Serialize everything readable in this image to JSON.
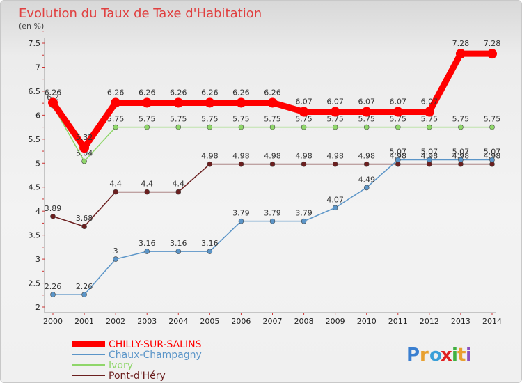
{
  "chart_data": {
    "type": "line",
    "title": "Evolution du Taux de Taxe d'Habitation",
    "subtitle": "(en %)",
    "x": [
      "2000",
      "2001",
      "2002",
      "2003",
      "2004",
      "2005",
      "2006",
      "2007",
      "2008",
      "2009",
      "2010",
      "2011",
      "2012",
      "2013",
      "2014"
    ],
    "yticks": [
      "2",
      "2.5",
      "3",
      "3.5",
      "4",
      "4.5",
      "5",
      "5.5",
      "6",
      "6.5",
      "7",
      "7.5"
    ],
    "ylim": [
      2,
      7.5
    ],
    "grid": false,
    "legend_position": "bottom-left",
    "series": [
      {
        "name": "Pont-d'Héry",
        "color": "#6b1f1f",
        "values": [
          3.89,
          3.68,
          4.4,
          4.4,
          4.4,
          4.98,
          4.98,
          4.98,
          4.98,
          4.98,
          4.98,
          4.98,
          4.98,
          4.98,
          4.98
        ],
        "labels": [
          "3.89",
          "3.68",
          "4.4",
          "4.4",
          "4.4",
          "4.98",
          "4.98",
          "4.98",
          "4.98",
          "4.98",
          "4.98",
          "4.98",
          "4.98",
          "4.98",
          "4.98"
        ]
      },
      {
        "name": "Chaux-Champagny",
        "color": "#5b95c8",
        "values": [
          2.26,
          2.26,
          3,
          3.16,
          3.16,
          3.16,
          3.79,
          3.79,
          3.79,
          4.07,
          4.49,
          5.07,
          5.07,
          5.07,
          5.07
        ],
        "labels": [
          "2.26",
          "2.26",
          "3",
          "3.16",
          "3.16",
          "3.16",
          "3.79",
          "3.79",
          "3.79",
          "4.07",
          "4.49",
          "5.07",
          "5.07",
          "5.07",
          "5.07"
        ]
      },
      {
        "name": "Ivory",
        "color": "#8fd66a",
        "values": [
          6.2,
          5.04,
          5.75,
          5.75,
          5.75,
          5.75,
          5.75,
          5.75,
          5.75,
          5.75,
          5.75,
          5.75,
          5.75,
          5.75,
          5.75
        ],
        "labels": [
          "6.2",
          "5.04",
          "5.75",
          "5.75",
          "5.75",
          "5.75",
          "5.75",
          "5.75",
          "5.75",
          "5.75",
          "5.75",
          "5.75",
          "5.75",
          "5.75",
          "5.75"
        ]
      },
      {
        "name": "CHILLY-SUR-SALINS",
        "color": "#ff0000",
        "values": [
          6.26,
          5.32,
          6.26,
          6.26,
          6.26,
          6.26,
          6.26,
          6.26,
          6.07,
          6.07,
          6.07,
          6.07,
          6.07,
          7.28,
          7.28
        ],
        "labels": [
          "6.26",
          "5.32",
          "6.26",
          "6.26",
          "6.26",
          "6.26",
          "6.26",
          "6.26",
          "6.07",
          "6.07",
          "6.07",
          "6.07",
          "6.07",
          "7.28",
          "7.28"
        ]
      }
    ],
    "legend": [
      "CHILLY-SUR-SALINS",
      "Chaux-Champagny",
      "Ivory",
      "Pont-d'Héry"
    ]
  },
  "brand": {
    "letters": [
      "P",
      "r",
      "o",
      "x",
      "i",
      "t",
      "i"
    ],
    "colors": [
      "#3a7fd0",
      "#e8a030",
      "#3a9fd8",
      "#e02020",
      "#40b040",
      "#e8a030",
      "#8a50c0"
    ]
  }
}
